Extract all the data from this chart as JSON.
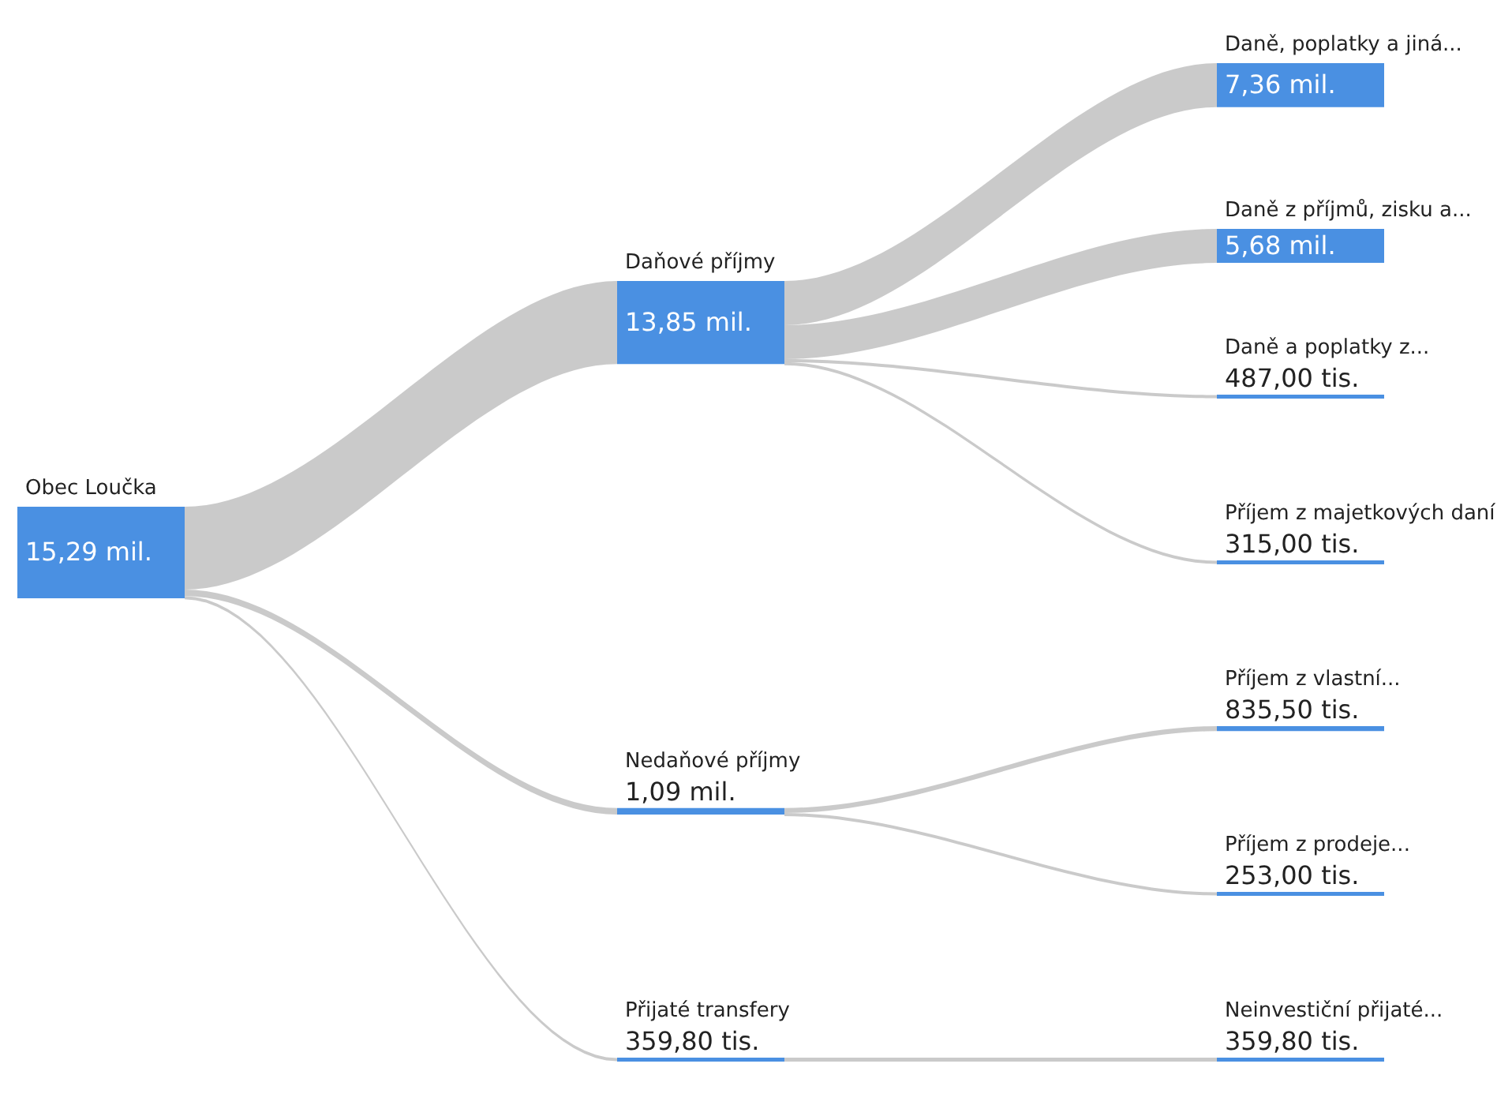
{
  "chart_data": {
    "type": "other",
    "categories": [
      "Obec Loučka",
      "Daňové příjmy",
      "Daně, poplatky a jiná...",
      "Daně z příjmů, zisku a...",
      "Daně a poplatky z...",
      "Příjem z majetkových daní",
      "Nedaňové příjmy",
      "Příjem z vlastní...",
      "Příjem z prodeje...",
      "Přijaté transfery",
      "Neinvestiční přijaté..."
    ],
    "series": [
      {
        "color": "#4a90e2",
        "values": [
          15.29,
          null,
          null,
          null,
          null,
          null,
          null,
          null,
          null,
          null,
          null
        ],
        "value_labels": [
          "15,29 mil.",
          null,
          null,
          null,
          null,
          null,
          null,
          null,
          null,
          null,
          null
        ]
      },
      {
        "color": "#4a90e2",
        "values": [
          null,
          13.85,
          null,
          null,
          null,
          null,
          1.09,
          null,
          null,
          359.8,
          null
        ],
        "value_labels": [
          null,
          "13,85 mil.",
          null,
          null,
          null,
          null,
          "1,09 mil.",
          null,
          null,
          "359,80 tis.",
          null
        ]
      },
      {
        "color": "#4a90e2",
        "values": [
          null,
          null,
          7.36,
          5.68,
          487,
          315,
          null,
          835.5,
          253,
          null,
          359.8
        ],
        "value_labels": [
          null,
          null,
          "7,36 mil.",
          "5,68 mil.",
          "487,00 tis.",
          "315,00 tis.",
          null,
          "835,50 tis.",
          "253,00 tis.",
          null,
          "359,80 tis."
        ]
      }
    ]
  }
}
